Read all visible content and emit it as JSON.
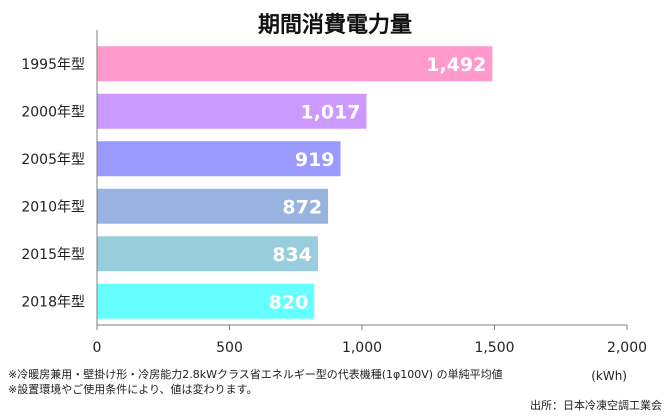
{
  "chart_data": {
    "type": "bar",
    "orientation": "horizontal",
    "title": "期間消費電力量",
    "categories": [
      "1995年型",
      "2000年型",
      "2005年型",
      "2010年型",
      "2015年型",
      "2018年型"
    ],
    "values": [
      1492,
      1017,
      919,
      872,
      834,
      820
    ],
    "value_labels": [
      "1,492",
      "1,017",
      "919",
      "872",
      "834",
      "820"
    ],
    "colors": [
      "#FF99CC",
      "#CC99FF",
      "#9999FF",
      "#99B3E0",
      "#99CCDD",
      "#66FFFF"
    ],
    "xlim": [
      0,
      2000
    ],
    "xticks": [
      0,
      500,
      1000,
      1500,
      2000
    ],
    "xtick_labels": [
      "0",
      "500",
      "1,000",
      "1,500",
      "2,000"
    ],
    "unit_label": "(kWh)",
    "grid": false
  },
  "notes": [
    "※冷暖房兼用・壁掛け形・冷房能力2.8kWクラス省エネルギー型の代表機種(1φ100V) の単純平均値",
    "※設置環境やご使用条件により、値は変わります。"
  ],
  "source": "出所：日本冷凍空調工業会"
}
